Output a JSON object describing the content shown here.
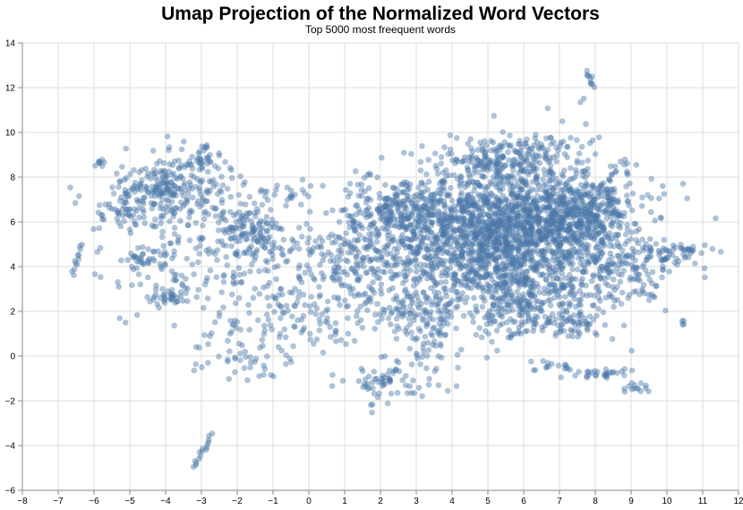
{
  "chart_data": {
    "type": "scatter",
    "title": "Umap Projection of the Normalized Word Vectors",
    "subtitle": "Top 5000 most freequent words",
    "xlabel": "",
    "ylabel": "",
    "xlim": [
      -8,
      12
    ],
    "ylim": [
      -6,
      14
    ],
    "x_ticks": [
      "−8",
      "−7",
      "−6",
      "−5",
      "−4",
      "−3",
      "−2",
      "−1",
      "0",
      "1",
      "2",
      "3",
      "4",
      "5",
      "6",
      "7",
      "8",
      "9",
      "10",
      "11",
      "12"
    ],
    "y_ticks": [
      "−6",
      "−4",
      "−2",
      "0",
      "2",
      "4",
      "6",
      "8",
      "10",
      "12",
      "14"
    ],
    "grid": true,
    "point_color": "#4c78a8",
    "point_opacity": 0.45,
    "n_points_described": 5000,
    "clusters": [
      {
        "cx": 5.8,
        "cy": 5.6,
        "sx": 1.5,
        "sy": 1.7,
        "n": 1500
      },
      {
        "cx": 4.5,
        "cy": 4.2,
        "sx": 1.2,
        "sy": 1.6,
        "n": 450
      },
      {
        "cx": 7.6,
        "cy": 6.4,
        "sx": 0.9,
        "sy": 0.9,
        "n": 350
      },
      {
        "cx": 5.5,
        "cy": 8.8,
        "sx": 0.9,
        "sy": 0.6,
        "n": 160
      },
      {
        "cx": 8.5,
        "cy": 3.6,
        "sx": 0.8,
        "sy": 0.8,
        "n": 120
      },
      {
        "cx": 6.3,
        "cy": 2.2,
        "sx": 0.9,
        "sy": 0.6,
        "n": 130
      },
      {
        "cx": 7.6,
        "cy": 1.3,
        "sx": 0.4,
        "sy": 0.25,
        "n": 40
      },
      {
        "cx": 9.8,
        "cy": 4.5,
        "sx": 0.6,
        "sy": 0.35,
        "n": 50
      },
      {
        "cx": 10.7,
        "cy": 4.8,
        "sx": 0.3,
        "sy": 0.1,
        "n": 14
      },
      {
        "cx": 10.45,
        "cy": 1.5,
        "sx": 0.05,
        "sy": 0.05,
        "n": 4
      },
      {
        "cx": 2.9,
        "cy": 6.6,
        "sx": 0.9,
        "sy": 0.6,
        "n": 260
      },
      {
        "cx": 2.6,
        "cy": 4.4,
        "sx": 0.9,
        "sy": 0.8,
        "n": 140
      },
      {
        "cx": 2.7,
        "cy": 2.1,
        "sx": 0.7,
        "sy": 0.6,
        "n": 80
      },
      {
        "cx": 2.2,
        "cy": -1.3,
        "sx": 0.5,
        "sy": 0.4,
        "n": 60
      },
      {
        "cx": 3.5,
        "cy": 0.5,
        "sx": 0.6,
        "sy": 0.8,
        "n": 50
      },
      {
        "cx": 7.8,
        "cy": -0.8,
        "sx": 0.5,
        "sy": 0.12,
        "n": 30
      },
      {
        "cx": 6.7,
        "cy": -0.4,
        "sx": 0.4,
        "sy": 0.15,
        "n": 15
      },
      {
        "cx": 9.2,
        "cy": -1.4,
        "sx": 0.25,
        "sy": 0.12,
        "n": 14
      },
      {
        "cx": -3.9,
        "cy": 7.4,
        "sx": 0.9,
        "sy": 0.9,
        "n": 300
      },
      {
        "cx": -2.9,
        "cy": 8.9,
        "sx": 0.2,
        "sy": 0.3,
        "n": 30
      },
      {
        "cx": -5.5,
        "cy": 6.4,
        "sx": 0.3,
        "sy": 0.5,
        "n": 25
      },
      {
        "cx": -5.8,
        "cy": 8.6,
        "sx": 0.1,
        "sy": 0.1,
        "n": 8
      },
      {
        "cx": -3.0,
        "cy": 3.6,
        "sx": 1.3,
        "sy": 1.0,
        "n": 140
      },
      {
        "cx": -1.6,
        "cy": 5.6,
        "sx": 0.5,
        "sy": 0.6,
        "n": 120
      },
      {
        "cx": -1.2,
        "cy": 2.0,
        "sx": 0.8,
        "sy": 1.2,
        "n": 70
      },
      {
        "cx": -2.0,
        "cy": 0.0,
        "sx": 0.7,
        "sy": 0.6,
        "n": 40
      },
      {
        "cx": 0.3,
        "cy": 4.3,
        "sx": 0.7,
        "sy": 0.8,
        "n": 90
      },
      {
        "cx": 0.6,
        "cy": 1.6,
        "sx": 0.7,
        "sy": 0.8,
        "n": 50
      },
      {
        "cx": -0.6,
        "cy": 7.3,
        "sx": 0.6,
        "sy": 0.5,
        "n": 25
      },
      {
        "cx": -3.9,
        "cy": 2.6,
        "sx": 0.3,
        "sy": 0.1,
        "n": 22
      },
      {
        "cx": -4.6,
        "cy": 4.4,
        "sx": 0.35,
        "sy": 0.2,
        "n": 30
      },
      {
        "cx": 1.7,
        "cy": 6.3,
        "sx": 0.4,
        "sy": 1.0,
        "n": 60
      },
      {
        "cx": 1.4,
        "cy": 3.8,
        "sx": 0.4,
        "sy": 0.7,
        "n": 40
      }
    ],
    "tracks": [
      {
        "x0": -3.2,
        "y0": -4.95,
        "x1": -2.7,
        "y1": -3.5,
        "n": 16
      },
      {
        "x0": -6.6,
        "y0": 3.65,
        "x1": -6.35,
        "y1": 5.0,
        "n": 12
      },
      {
        "x0": 7.75,
        "y0": 12.7,
        "x1": 7.95,
        "y1": 12.1,
        "n": 10
      },
      {
        "x0": 7.6,
        "y0": 11.3,
        "x1": 7.7,
        "y1": 11.5,
        "n": 2
      }
    ]
  }
}
